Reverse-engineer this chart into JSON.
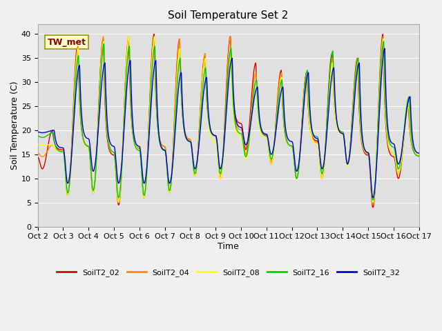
{
  "title": "Soil Temperature Set 2",
  "xlabel": "Time",
  "ylabel": "Soil Temperature (C)",
  "ylim": [
    0,
    42
  ],
  "yticks": [
    0,
    5,
    10,
    15,
    20,
    25,
    30,
    35,
    40
  ],
  "x_tick_labels": [
    "Oct 2",
    "Oct 3",
    "Oct 4",
    "Oct 5",
    "Oct 6",
    "Oct 7",
    "Oct 8",
    "Oct 9",
    "Oct 10",
    "Oct 11",
    "Oct 12",
    "Oct 13",
    "Oct 14",
    "Oct 15",
    "Oct 16",
    "Oct 17"
  ],
  "series_colors": {
    "SoilT2_02": "#dd0000",
    "SoilT2_04": "#ff8800",
    "SoilT2_08": "#ffff00",
    "SoilT2_16": "#00cc00",
    "SoilT2_32": "#0000dd"
  },
  "background_color": "#e0e0e0",
  "grid_color": "#ffffff",
  "annotation_text": "TW_met",
  "line_width": 1.0,
  "title_fontsize": 11,
  "axis_label_fontsize": 9,
  "tick_fontsize": 8,
  "legend_fontsize": 8,
  "fig_facecolor": "#f0f0f0"
}
